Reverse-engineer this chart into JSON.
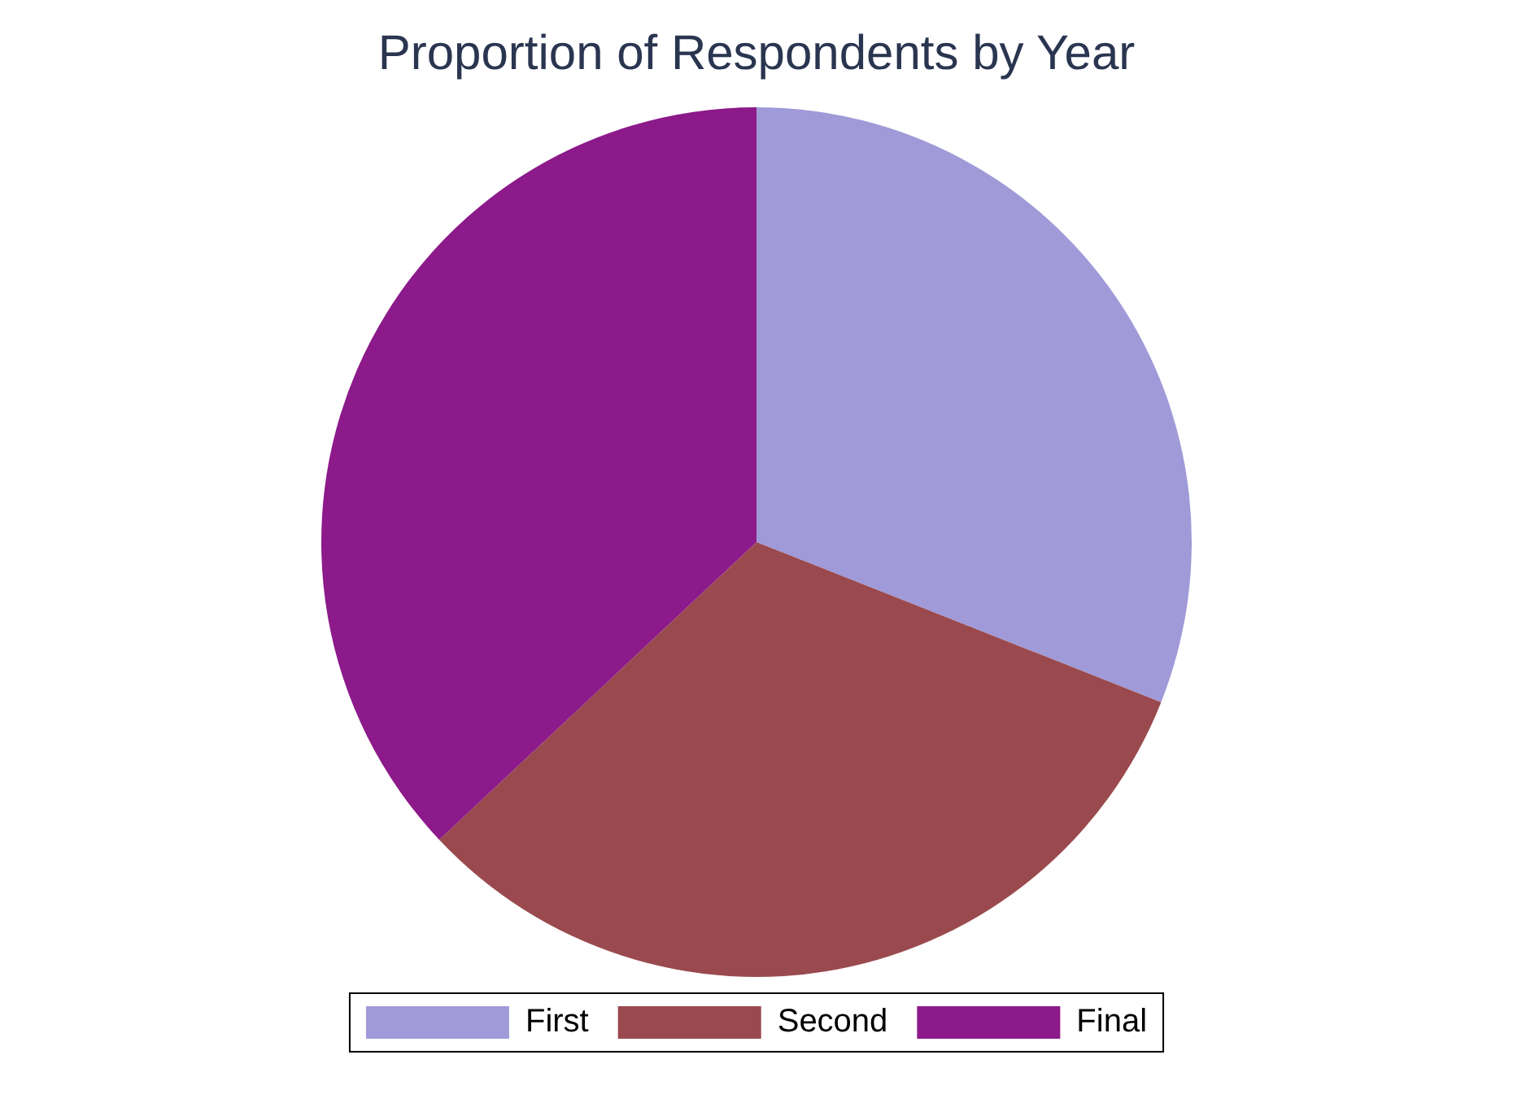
{
  "chart_data": {
    "type": "pie",
    "title": "Proportion of Respondents by Year",
    "categories": [
      "First",
      "Second",
      "Final"
    ],
    "values": [
      31,
      32,
      37
    ],
    "colors": [
      "#a09ad8",
      "#9a4a4e",
      "#8c1a8a"
    ],
    "legend": "bottom"
  }
}
